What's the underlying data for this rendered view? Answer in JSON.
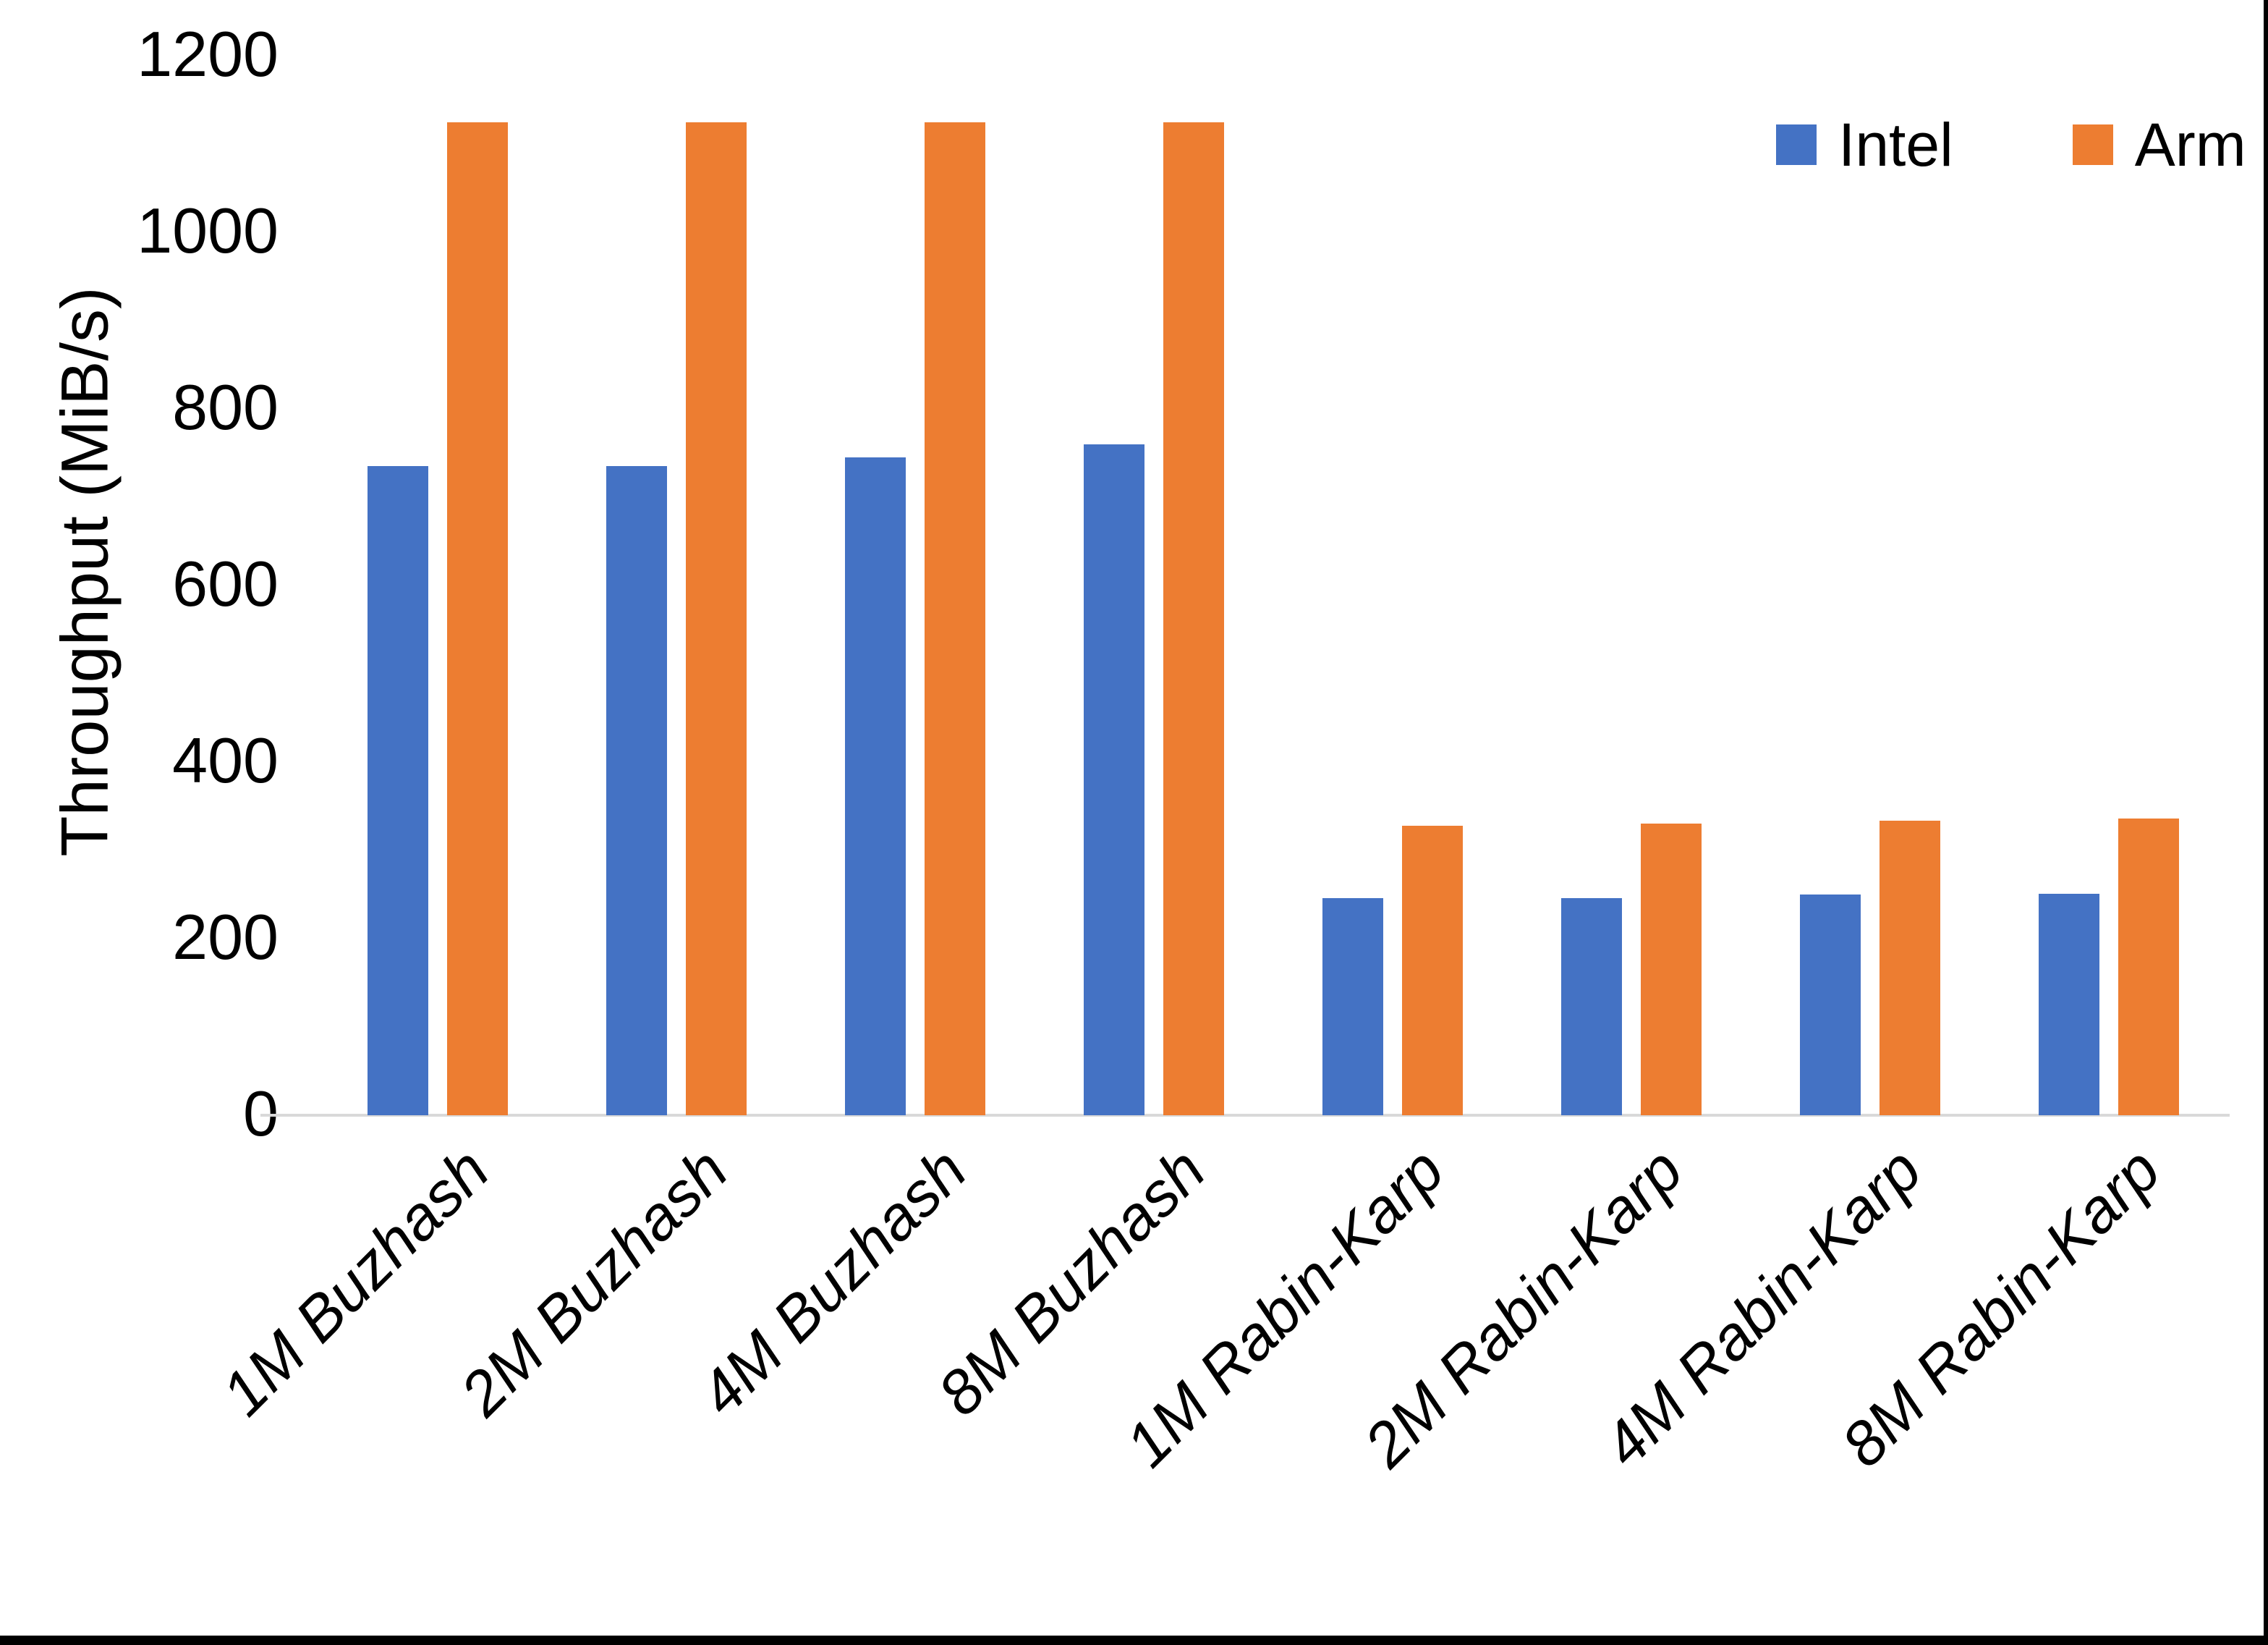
{
  "chart_data": {
    "type": "bar",
    "title": "",
    "xlabel": "",
    "ylabel": "Throughput (MiB/s)",
    "ylim": [
      0,
      1200
    ],
    "yticks": [
      0,
      200,
      400,
      600,
      800,
      1000,
      1200
    ],
    "grid": false,
    "legend_position": "top-right",
    "categories": [
      "1M Buzhash",
      "2M Buzhash",
      "4M Buzhash",
      "8M Buzhash",
      "1M Rabin-Karp",
      "2M Rabin-Karp",
      "4M Rabin-Karp",
      "8M Rabin-Karp"
    ],
    "series": [
      {
        "name": "Intel",
        "color": "#4472C4",
        "values": [
          735,
          735,
          745,
          760,
          246,
          246,
          250,
          251
        ]
      },
      {
        "name": "Arm",
        "color": "#ED7D31",
        "values": [
          1125,
          1125,
          1125,
          1125,
          328,
          330,
          334,
          336
        ]
      }
    ]
  },
  "page": {
    "background": "#FFFFFF",
    "frame_color": "#000000",
    "axis_line_color": "#D9D9D9",
    "text_color": "#000000"
  }
}
